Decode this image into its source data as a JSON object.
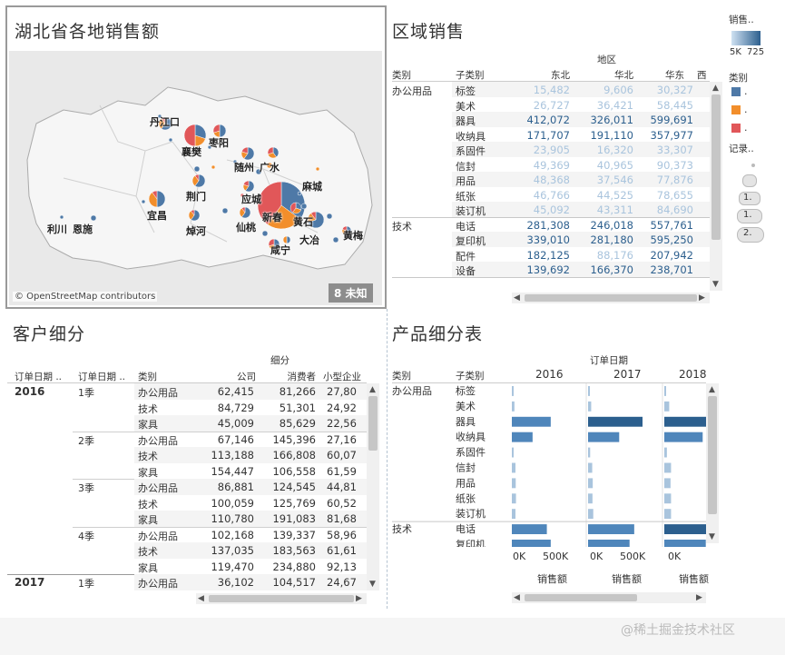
{
  "map": {
    "title": "湖北省各地销售额",
    "attribution": "© OpenStreetMap contributors",
    "unknown_badge": "8 未知",
    "cities": [
      {
        "name": "丹江口"
      },
      {
        "name": "襄樊"
      },
      {
        "name": "枣阳"
      },
      {
        "name": "随州"
      },
      {
        "name": "广水"
      },
      {
        "name": "荆门"
      },
      {
        "name": "麻城"
      },
      {
        "name": "宜昌"
      },
      {
        "name": "应城"
      },
      {
        "name": "新春"
      },
      {
        "name": "利川"
      },
      {
        "name": "恩施"
      },
      {
        "name": "仙桃"
      },
      {
        "name": "黄石"
      },
      {
        "name": "焯河"
      },
      {
        "name": "大冶"
      },
      {
        "name": "咸宁"
      },
      {
        "name": "黄梅"
      }
    ],
    "colors": {
      "blue": "#4e79a7",
      "orange": "#f28e2b",
      "red": "#e15759"
    }
  },
  "region": {
    "title": "区域销售",
    "col_group": "地区",
    "headers": {
      "category": "类别",
      "subcategory": "子类别"
    },
    "columns": [
      "东北",
      "华北",
      "华东",
      "西"
    ],
    "groups": [
      {
        "category": "办公用品",
        "rows": [
          {
            "sub": "标签",
            "v": [
              "15,482",
              "9,606",
              "30,327"
            ]
          },
          {
            "sub": "美术",
            "v": [
              "26,727",
              "36,421",
              "58,445"
            ]
          },
          {
            "sub": "器具",
            "v": [
              "412,072",
              "326,011",
              "599,691"
            ]
          },
          {
            "sub": "收纳具",
            "v": [
              "171,707",
              "191,110",
              "357,977"
            ]
          },
          {
            "sub": "系固件",
            "v": [
              "23,905",
              "16,320",
              "33,307"
            ]
          },
          {
            "sub": "信封",
            "v": [
              "49,369",
              "40,965",
              "90,373"
            ]
          },
          {
            "sub": "用品",
            "v": [
              "48,368",
              "37,546",
              "77,876"
            ]
          },
          {
            "sub": "纸张",
            "v": [
              "46,766",
              "44,525",
              "78,655"
            ]
          },
          {
            "sub": "装订机",
            "v": [
              "45,092",
              "43,311",
              "84,690"
            ]
          }
        ]
      },
      {
        "category": "技术",
        "rows": [
          {
            "sub": "电话",
            "v": [
              "281,308",
              "246,018",
              "557,761"
            ]
          },
          {
            "sub": "复印机",
            "v": [
              "339,010",
              "281,180",
              "595,250"
            ]
          },
          {
            "sub": "配件",
            "v": [
              "182,125",
              "88,176",
              "207,942"
            ]
          },
          {
            "sub": "设备",
            "v": [
              "139,692",
              "166,370",
              "238,701"
            ]
          }
        ]
      }
    ]
  },
  "legend": {
    "sales_title": "销售..",
    "sales_range": "5K",
    "sales_max": "725",
    "category_title": "类别",
    "category_items": [
      ".",
      ".",
      "."
    ],
    "record_title": "记录..",
    "record_items": [
      "1.",
      "1.",
      "2."
    ]
  },
  "customer": {
    "title": "客户细分",
    "col_group": "细分",
    "headers": {
      "date1": "订单日期 ..",
      "date2": "订单日期 ..",
      "category": "类别"
    },
    "columns": [
      "公司",
      "消费者",
      "小型企业"
    ],
    "rows": [
      {
        "year": "2016",
        "q": "1季",
        "cat": "办公用品",
        "v": [
          "62,415",
          "81,266",
          "27,80"
        ]
      },
      {
        "year": "",
        "q": "",
        "cat": "技术",
        "v": [
          "84,729",
          "51,301",
          "24,92"
        ]
      },
      {
        "year": "",
        "q": "",
        "cat": "家具",
        "v": [
          "45,009",
          "85,629",
          "22,56"
        ]
      },
      {
        "year": "",
        "q": "2季",
        "cat": "办公用品",
        "v": [
          "67,146",
          "145,396",
          "27,16"
        ]
      },
      {
        "year": "",
        "q": "",
        "cat": "技术",
        "v": [
          "113,188",
          "166,808",
          "60,07"
        ]
      },
      {
        "year": "",
        "q": "",
        "cat": "家具",
        "v": [
          "154,447",
          "106,558",
          "61,59"
        ]
      },
      {
        "year": "",
        "q": "3季",
        "cat": "办公用品",
        "v": [
          "86,881",
          "124,545",
          "44,81"
        ]
      },
      {
        "year": "",
        "q": "",
        "cat": "技术",
        "v": [
          "100,059",
          "125,769",
          "60,52"
        ]
      },
      {
        "year": "",
        "q": "",
        "cat": "家具",
        "v": [
          "110,780",
          "191,083",
          "81,68"
        ]
      },
      {
        "year": "",
        "q": "4季",
        "cat": "办公用品",
        "v": [
          "102,168",
          "139,337",
          "58,96"
        ]
      },
      {
        "year": "",
        "q": "",
        "cat": "技术",
        "v": [
          "137,035",
          "183,563",
          "61,61"
        ]
      },
      {
        "year": "",
        "q": "",
        "cat": "家具",
        "v": [
          "119,470",
          "234,880",
          "92,13"
        ]
      },
      {
        "year": "2017",
        "q": "1季",
        "cat": "办公用品",
        "v": [
          "36,102",
          "104,517",
          "24,67"
        ]
      }
    ]
  },
  "product": {
    "title": "产品细分表",
    "col_group": "订单日期",
    "headers": {
      "category": "类别",
      "subcategory": "子类别"
    },
    "years": [
      "2016",
      "2017",
      "2018"
    ],
    "axis_ticks": [
      "0K",
      "500K"
    ],
    "axis_label": "销售额",
    "groups": [
      {
        "category": "办公用品",
        "rows": [
          {
            "sub": "标签",
            "v": [
              5,
              6,
              7
            ]
          },
          {
            "sub": "美术",
            "v": [
              10,
              12,
              19
            ]
          },
          {
            "sub": "器具",
            "v": [
              150,
              210,
              260
            ]
          },
          {
            "sub": "收纳具",
            "v": [
              80,
              120,
              148
            ]
          },
          {
            "sub": "系固件",
            "v": [
              6,
              8,
              10
            ]
          },
          {
            "sub": "信封",
            "v": [
              14,
              16,
              26
            ]
          },
          {
            "sub": "用品",
            "v": [
              15,
              18,
              24
            ]
          },
          {
            "sub": "纸张",
            "v": [
              16,
              17,
              26
            ]
          },
          {
            "sub": "装订机",
            "v": [
              14,
              20,
              26
            ]
          }
        ]
      },
      {
        "category": "技术",
        "rows": [
          {
            "sub": "电话",
            "v": [
              135,
              178,
              270
            ]
          },
          {
            "sub": "复印机",
            "v": [
              150,
              160,
              160
            ]
          }
        ]
      }
    ]
  },
  "watermark": "@稀土掘金技术社区"
}
